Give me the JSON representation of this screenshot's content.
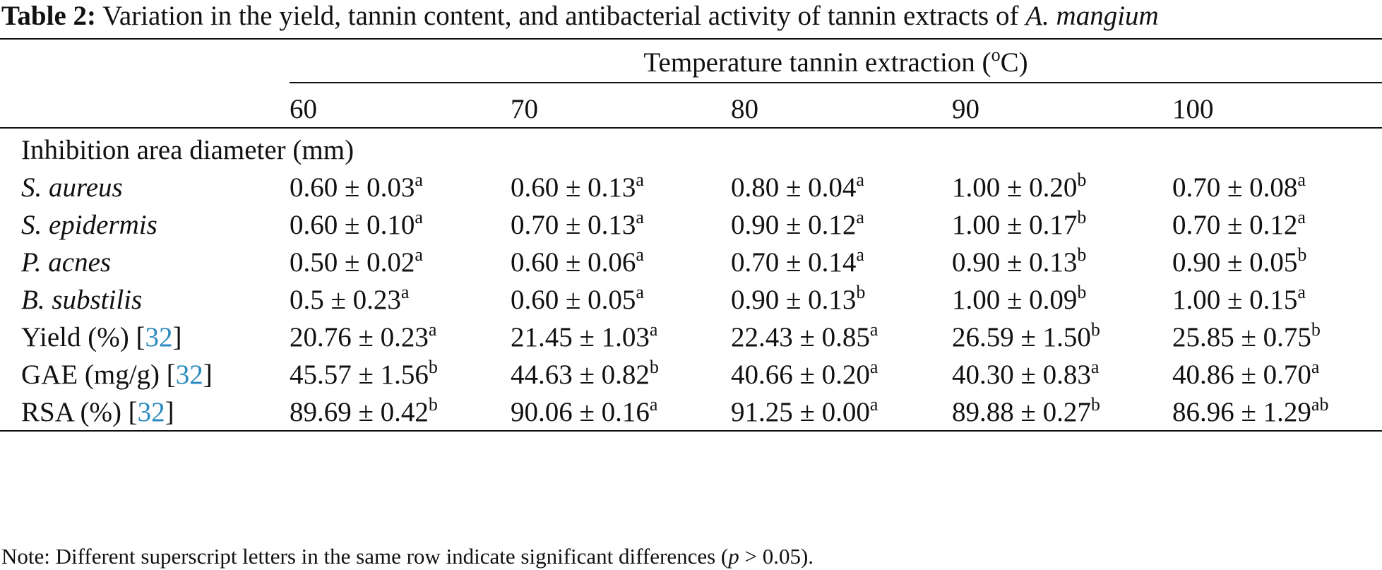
{
  "caption": {
    "label": "Table 2:",
    "text": "Variation in the yield, tannin content, and antibacterial activity of tannin extracts of",
    "species": "A. mangium"
  },
  "header": {
    "group_title": "Temperature tannin extraction (",
    "unit_degree": "o",
    "unit_letter": "C)",
    "columns": [
      "60",
      "70",
      "80",
      "90",
      "100"
    ]
  },
  "section_label": "Inhibition area diameter (mm)",
  "rows": [
    {
      "label": "S. aureus",
      "italic": true,
      "ref": "",
      "cells": [
        [
          "0.60 ± 0.03",
          "a"
        ],
        [
          "0.60 ± 0.13",
          "a"
        ],
        [
          "0.80 ± 0.04",
          "a"
        ],
        [
          "1.00 ± 0.20",
          "b"
        ],
        [
          "0.70 ± 0.08",
          "a"
        ]
      ]
    },
    {
      "label": "S. epidermis",
      "italic": true,
      "ref": "",
      "cells": [
        [
          "0.60 ± 0.10",
          "a"
        ],
        [
          "0.70 ± 0.13",
          "a"
        ],
        [
          "0.90 ± 0.12",
          "a"
        ],
        [
          "1.00 ± 0.17",
          "b"
        ],
        [
          "0.70 ± 0.12",
          "a"
        ]
      ]
    },
    {
      "label": "P. acnes",
      "italic": true,
      "ref": "",
      "cells": [
        [
          "0.50 ± 0.02",
          "a"
        ],
        [
          "0.60 ± 0.06",
          "a"
        ],
        [
          "0.70 ± 0.14",
          "a"
        ],
        [
          "0.90 ± 0.13",
          "b"
        ],
        [
          "0.90 ± 0.05",
          "b"
        ]
      ]
    },
    {
      "label": "B. substilis",
      "italic": true,
      "ref": "",
      "cells": [
        [
          "0.5 ± 0.23",
          "a"
        ],
        [
          "0.60 ± 0.05",
          "a"
        ],
        [
          "0.90 ± 0.13",
          "b"
        ],
        [
          "1.00 ± 0.09",
          "b"
        ],
        [
          "1.00 ± 0.15",
          "a"
        ]
      ]
    },
    {
      "label": "Yield (%) [",
      "italic": false,
      "ref": "32",
      "cells": [
        [
          "20.76 ± 0.23",
          "a"
        ],
        [
          "21.45 ± 1.03",
          "a"
        ],
        [
          "22.43 ± 0.85",
          "a"
        ],
        [
          "26.59 ± 1.50",
          "b"
        ],
        [
          "25.85 ± 0.75",
          "b"
        ]
      ]
    },
    {
      "label": "GAE (mg/g) [",
      "italic": false,
      "ref": "32",
      "cells": [
        [
          "45.57 ± 1.56",
          "b"
        ],
        [
          "44.63 ± 0.82",
          "b"
        ],
        [
          "40.66 ± 0.20",
          "a"
        ],
        [
          "40.30 ± 0.83",
          "a"
        ],
        [
          "40.86 ± 0.70",
          "a"
        ]
      ]
    },
    {
      "label": "RSA (%) [",
      "italic": false,
      "ref": "32",
      "cells": [
        [
          "89.69 ± 0.42",
          "b"
        ],
        [
          "90.06 ± 0.16",
          "a"
        ],
        [
          "91.25 ± 0.00",
          "a"
        ],
        [
          "89.88 ± 0.27",
          "b"
        ],
        [
          "86.96 ± 1.29",
          "ab"
        ]
      ]
    }
  ],
  "note": {
    "prefix": "Note: Different superscript letters in the same row indicate significant differences (",
    "p": "p",
    "suffix": " > 0.05)."
  },
  "colors": {
    "text": "#111111",
    "link": "#2a8bc0"
  }
}
